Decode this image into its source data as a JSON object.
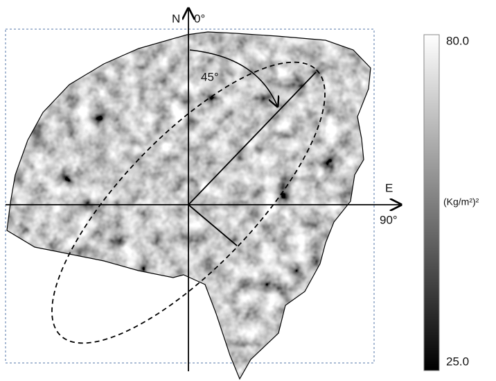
{
  "map": {
    "north_label": "N",
    "north_angle": "0°",
    "east_label": "E",
    "east_angle": "90°",
    "angle_label": "45°"
  },
  "colorbar": {
    "max_label": "80.0",
    "min_label": "25.0",
    "unit": "(Kg/m²)²"
  }
}
